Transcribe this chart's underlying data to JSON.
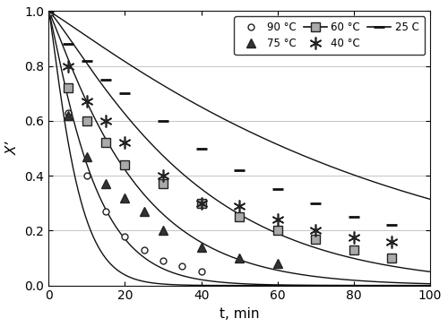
{
  "title": "",
  "xlabel": "t, min",
  "ylabel": "X’",
  "xlim": [
    0,
    100
  ],
  "ylim": [
    0.0,
    1.0
  ],
  "xticks": [
    0,
    20,
    40,
    60,
    80,
    100
  ],
  "yticks": [
    0.0,
    0.2,
    0.4,
    0.6,
    0.8,
    1.0
  ],
  "background_color": "#ffffff",
  "series": {
    "90C": {
      "label": "90 °C",
      "marker": "o",
      "marker_size": 5,
      "marker_facecolor": "white",
      "marker_edgecolor": "#222222",
      "t_data": [
        0,
        5,
        10,
        15,
        20,
        25,
        30,
        35,
        40
      ],
      "x_data": [
        1.0,
        0.63,
        0.4,
        0.27,
        0.18,
        0.13,
        0.09,
        0.07,
        0.05
      ],
      "k": 0.095,
      "n": 1.18
    },
    "75C": {
      "label": "75 °C",
      "marker": "^",
      "marker_size": 7,
      "marker_facecolor": "#333333",
      "marker_edgecolor": "#222222",
      "t_data": [
        0,
        5,
        10,
        15,
        20,
        25,
        30,
        40,
        50,
        60
      ],
      "x_data": [
        1.0,
        0.62,
        0.47,
        0.37,
        0.32,
        0.27,
        0.2,
        0.14,
        0.1,
        0.08
      ],
      "k": 0.062,
      "n": 1.12
    },
    "60C": {
      "label": "60 °C",
      "marker": "s",
      "marker_size": 7,
      "marker_facecolor": "#aaaaaa",
      "marker_edgecolor": "#222222",
      "t_data": [
        0,
        5,
        10,
        15,
        20,
        30,
        40,
        50,
        60,
        70,
        80,
        90
      ],
      "x_data": [
        1.0,
        0.72,
        0.6,
        0.52,
        0.44,
        0.37,
        0.3,
        0.25,
        0.2,
        0.17,
        0.13,
        0.1
      ],
      "k": 0.032,
      "n": 1.1
    },
    "40C": {
      "label": "40 °C",
      "marker": "*",
      "marker_size": 10,
      "marker_facecolor": "#222222",
      "marker_edgecolor": "#222222",
      "t_data": [
        0,
        5,
        10,
        15,
        20,
        30,
        40,
        50,
        60,
        70,
        80,
        90
      ],
      "x_data": [
        1.0,
        0.8,
        0.67,
        0.6,
        0.52,
        0.4,
        0.3,
        0.29,
        0.24,
        0.2,
        0.175,
        0.16
      ],
      "k": 0.015,
      "n": 1.15
    },
    "25C": {
      "label": "25 C",
      "t_data": [
        0,
        5,
        10,
        15,
        20,
        30,
        40,
        50,
        60,
        70,
        80,
        90
      ],
      "x_data": [
        1.0,
        0.88,
        0.82,
        0.75,
        0.7,
        0.6,
        0.5,
        0.42,
        0.35,
        0.3,
        0.25,
        0.22
      ],
      "k": 0.008,
      "n": 1.08
    }
  }
}
